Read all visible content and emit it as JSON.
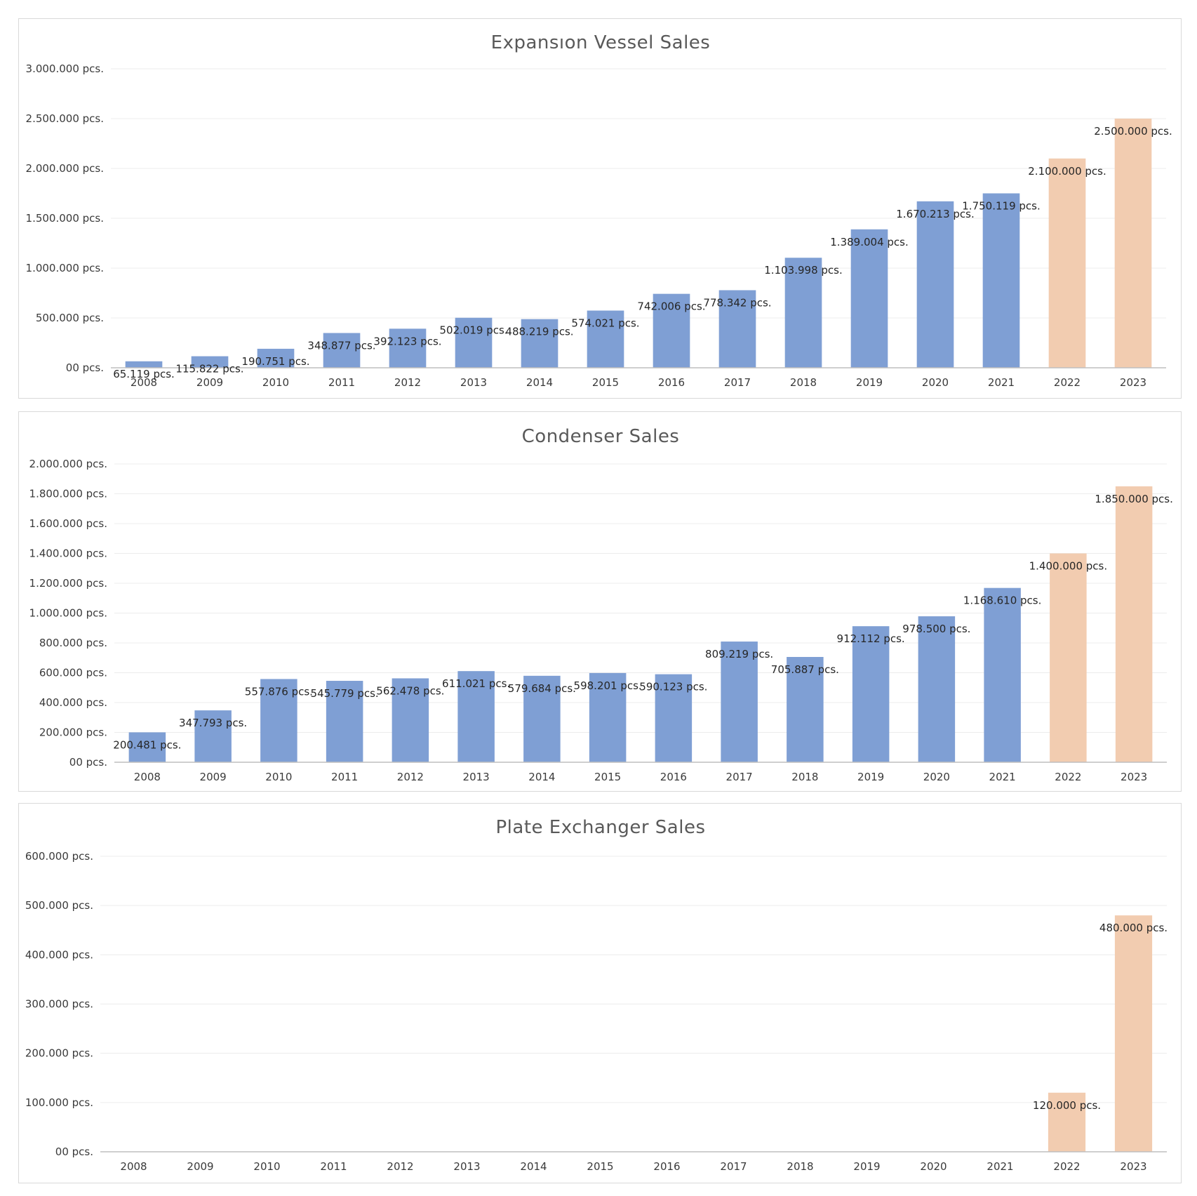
{
  "colors": {
    "actual": "#7f9fd4",
    "forecast": "#f2ccb0"
  },
  "chart_data": [
    {
      "type": "bar",
      "title": "Expansıon Vessel Sales",
      "categories": [
        "2008",
        "2009",
        "2010",
        "2011",
        "2012",
        "2013",
        "2014",
        "2015",
        "2016",
        "2017",
        "2018",
        "2019",
        "2020",
        "2021",
        "2022",
        "2023"
      ],
      "values": [
        65119,
        115822,
        190751,
        348877,
        392123,
        502019,
        488219,
        574021,
        742006,
        778342,
        1103998,
        1389004,
        1670213,
        1750119,
        2100000,
        2500000
      ],
      "labels": [
        "65.119 pcs.",
        "115.822 pcs.",
        "190.751 pcs.",
        "348.877 pcs.",
        "392.123 pcs.",
        "502.019 pcs.",
        "488.219 pcs.",
        "574.021 pcs.",
        "742.006 pcs.",
        "778.342 pcs.",
        "1.103.998 pcs.",
        "1.389.004 pcs.",
        "1.670.213 pcs.",
        "1.750.119 pcs.",
        "2.100.000 pcs.",
        "2.500.000 pcs."
      ],
      "forecast": [
        false,
        false,
        false,
        false,
        false,
        false,
        false,
        false,
        false,
        false,
        false,
        false,
        false,
        false,
        true,
        true
      ],
      "ylim": [
        0,
        3000000
      ],
      "yticks": [
        0,
        500000,
        1000000,
        1500000,
        2000000,
        2500000,
        3000000
      ],
      "ytick_labels": [
        "00 pcs.",
        "500.000 pcs.",
        "1.000.000 pcs.",
        "1.500.000 pcs.",
        "2.000.000 pcs.",
        "2.500.000 pcs.",
        "3.000.000 pcs."
      ],
      "grid": true
    },
    {
      "type": "bar",
      "title": "Condenser Sales",
      "categories": [
        "2008",
        "2009",
        "2010",
        "2011",
        "2012",
        "2013",
        "2014",
        "2015",
        "2016",
        "2017",
        "2018",
        "2019",
        "2020",
        "2021",
        "2022",
        "2023"
      ],
      "values": [
        200481,
        347793,
        557876,
        545779,
        562478,
        611021,
        579684,
        598201,
        590123,
        809219,
        705887,
        912112,
        978500,
        1168610,
        1400000,
        1850000
      ],
      "labels": [
        "200.481 pcs.",
        "347.793 pcs.",
        "557.876 pcs.",
        "545.779 pcs.",
        "562.478 pcs.",
        "611.021 pcs.",
        "579.684 pcs.",
        "598.201 pcs.",
        "590.123 pcs.",
        "809.219 pcs.",
        "705.887 pcs.",
        "912.112 pcs.",
        "978.500 pcs.",
        "1.168.610 pcs.",
        "1.400.000 pcs.",
        "1.850.000 pcs."
      ],
      "forecast": [
        false,
        false,
        false,
        false,
        false,
        false,
        false,
        false,
        false,
        false,
        false,
        false,
        false,
        false,
        true,
        true
      ],
      "ylim": [
        0,
        2000000
      ],
      "yticks": [
        0,
        200000,
        400000,
        600000,
        800000,
        1000000,
        1200000,
        1400000,
        1600000,
        1800000,
        2000000
      ],
      "ytick_labels": [
        "00 pcs.",
        "200.000 pcs.",
        "400.000 pcs.",
        "600.000 pcs.",
        "800.000 pcs.",
        "1.000.000 pcs.",
        "1.200.000 pcs.",
        "1.400.000 pcs.",
        "1.600.000 pcs.",
        "1.800.000 pcs.",
        "2.000.000 pcs."
      ],
      "grid": true
    },
    {
      "type": "bar",
      "title": "Plate Exchanger Sales",
      "categories": [
        "2008",
        "2009",
        "2010",
        "2011",
        "2012",
        "2013",
        "2014",
        "2015",
        "2016",
        "2017",
        "2018",
        "2019",
        "2020",
        "2021",
        "2022",
        "2023"
      ],
      "values": [
        0,
        0,
        0,
        0,
        0,
        0,
        0,
        0,
        0,
        0,
        0,
        0,
        0,
        0,
        120000,
        480000
      ],
      "labels": [
        "",
        "",
        "",
        "",
        "",
        "",
        "",
        "",
        "",
        "",
        "",
        "",
        "",
        "",
        "120.000 pcs.",
        "480.000 pcs."
      ],
      "forecast": [
        false,
        false,
        false,
        false,
        false,
        false,
        false,
        false,
        false,
        false,
        false,
        false,
        false,
        false,
        true,
        true
      ],
      "ylim": [
        0,
        600000
      ],
      "yticks": [
        0,
        100000,
        200000,
        300000,
        400000,
        500000,
        600000
      ],
      "ytick_labels": [
        "00 pcs.",
        "100.000 pcs.",
        "200.000 pcs.",
        "300.000 pcs.",
        "400.000 pcs.",
        "500.000 pcs.",
        "600.000 pcs."
      ],
      "grid": true
    }
  ]
}
